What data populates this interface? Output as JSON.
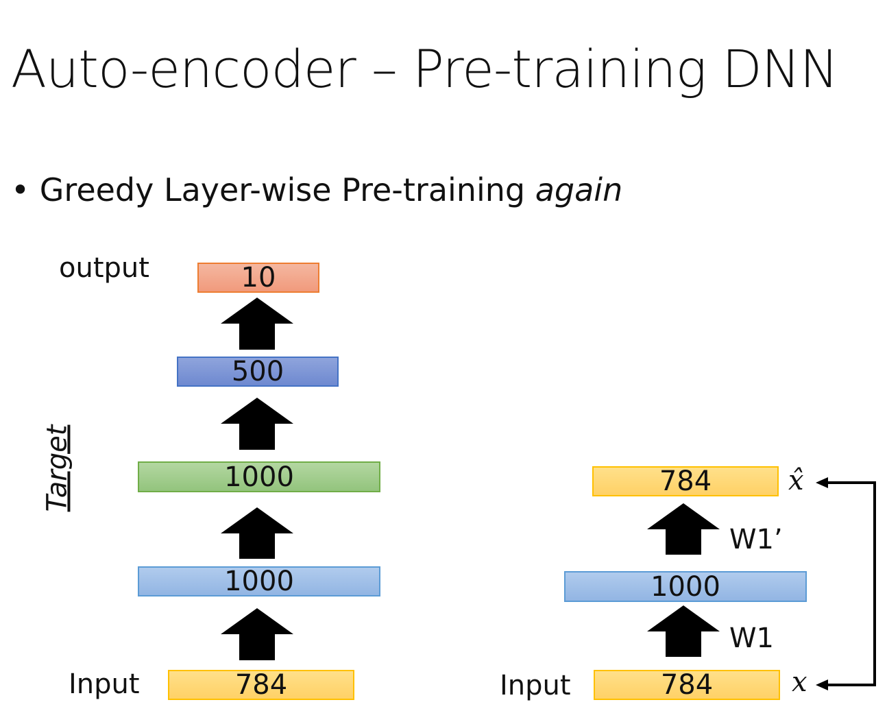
{
  "title": "Auto-encoder – Pre-training DNN",
  "bullet": {
    "text": "Greedy Layer-wise Pre-training ",
    "emphasis": "again"
  },
  "left": {
    "output_label": "output",
    "input_label": "Input",
    "target_label": "Target",
    "layers": [
      "10",
      "500",
      "1000",
      "1000",
      "784"
    ]
  },
  "right": {
    "input_label": "Input",
    "layers": [
      "784",
      "1000",
      "784"
    ],
    "weights": [
      "W1’",
      "W1"
    ],
    "x_hat": "x̂",
    "x": "x"
  }
}
